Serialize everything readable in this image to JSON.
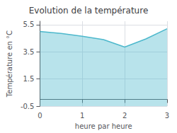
{
  "chart_data": {
    "type": "area",
    "title": "Evolution de la température",
    "xlabel": "heure par heure",
    "ylabel": "Température en °C",
    "x": [
      0,
      0.5,
      1.0,
      1.5,
      2.0,
      2.5,
      3.0
    ],
    "values": [
      5.0,
      4.85,
      4.65,
      4.4,
      3.85,
      4.45,
      5.2
    ],
    "color": "#4db8cc",
    "xlim": [
      0,
      3.0
    ],
    "ylim": [
      -0.5,
      5.75
    ],
    "xticks": [
      0,
      1,
      2,
      3
    ],
    "yticks": [
      -0.5,
      1.5,
      3.5,
      5.5
    ],
    "grid": true
  }
}
